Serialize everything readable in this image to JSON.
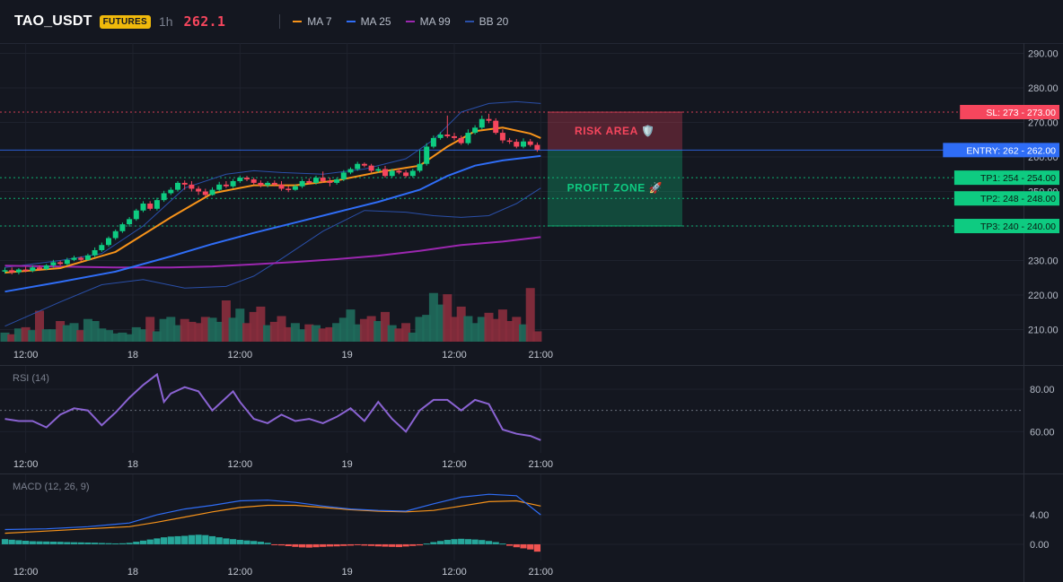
{
  "header": {
    "symbol": "TAO_USDT",
    "badge": "FUTURES",
    "interval": "1h",
    "price": "262.1",
    "legend": [
      {
        "label": "MA 7",
        "color": "#f7931a"
      },
      {
        "label": "MA 25",
        "color": "#2f6df6"
      },
      {
        "label": "MA 99",
        "color": "#9c27b0"
      },
      {
        "label": "BB 20",
        "color": "#2a4fa8"
      }
    ]
  },
  "colors": {
    "up": "#0ecb81",
    "down": "#f6465d",
    "ma7": "#f7931a",
    "ma25": "#2f6df6",
    "ma99": "#9c27b0",
    "bb": "#2a4fa8",
    "rsi": "#8a63d2",
    "macd": "#2f6df6",
    "signal": "#f7931a",
    "hist_up": "#26a69a",
    "hist_down": "#f05350"
  },
  "chart_data": [
    {
      "type": "candlestick",
      "title": "TAO_USDT",
      "y_ticks": [
        "290.00",
        "280.00",
        "270.00",
        "260.00",
        "250.00",
        "240.00",
        "230.00",
        "220.00",
        "210.00"
      ],
      "y_tick_values": [
        290,
        280,
        270,
        260,
        250,
        240,
        230,
        220,
        210
      ],
      "ylim": [
        206.5,
        293
      ],
      "x_ticks": [
        "12:00",
        "18",
        "12:00",
        "19",
        "12:00",
        "21:00"
      ],
      "x_tick_index": [
        3,
        18.5,
        34,
        49.5,
        65,
        77.5
      ],
      "candles": {
        "open": [
          226.8,
          227.2,
          226.6,
          227.4,
          227.0,
          228.0,
          227.5,
          228.6,
          229.5,
          229.0,
          230.2,
          230.8,
          230.2,
          231.5,
          233.0,
          234.5,
          236.5,
          238.5,
          240.5,
          242.0,
          244.5,
          246.5,
          245.0,
          247.5,
          249.5,
          250.5,
          252.5,
          252.0,
          250.8,
          250.0,
          249.0,
          250.5,
          252.0,
          251.5,
          253.0,
          254.0,
          253.5,
          252.5,
          251.8,
          252.5,
          252.0,
          250.8,
          250.5,
          251.5,
          253.0,
          252.5,
          254.0,
          253.0,
          252.5,
          253.5,
          255.5,
          256.5,
          258.0,
          257.5,
          256.0,
          256.5,
          254.5,
          256.0,
          255.5,
          254.5,
          256.0,
          258.0,
          263.0,
          265.5,
          266.5,
          266.0,
          265.5,
          264.0,
          267.0,
          268.5,
          271.0,
          270.5,
          267.0,
          264.8,
          264.4,
          263.0,
          264.5,
          263.5
        ],
        "close": [
          227.2,
          226.6,
          227.4,
          227.0,
          228.0,
          227.5,
          228.6,
          229.5,
          229.0,
          230.2,
          230.8,
          230.2,
          231.5,
          233.0,
          234.5,
          236.5,
          238.5,
          240.5,
          242.0,
          244.5,
          246.5,
          245.0,
          247.5,
          249.5,
          250.5,
          252.5,
          252.0,
          250.8,
          250.0,
          249.0,
          250.5,
          252.0,
          251.5,
          253.0,
          254.0,
          253.5,
          252.5,
          251.8,
          252.5,
          252.0,
          250.8,
          250.5,
          251.5,
          253.0,
          252.5,
          254.0,
          253.0,
          252.5,
          253.5,
          255.5,
          256.5,
          258.0,
          257.5,
          256.0,
          256.5,
          254.5,
          256.0,
          255.5,
          254.5,
          256.0,
          258.0,
          263.0,
          265.5,
          266.5,
          266.0,
          265.5,
          264.0,
          267.0,
          268.5,
          271.0,
          270.5,
          267.0,
          264.8,
          264.4,
          263.0,
          264.5,
          263.5,
          262.1
        ],
        "high": [
          228.0,
          228.0,
          227.8,
          228.2,
          228.6,
          228.6,
          229.0,
          230.2,
          230.0,
          230.8,
          231.4,
          231.2,
          232.0,
          233.8,
          235.2,
          237.0,
          239.0,
          241.0,
          242.6,
          245.0,
          247.2,
          247.2,
          248.2,
          250.2,
          251.2,
          253.0,
          253.2,
          253.0,
          251.5,
          250.8,
          251.2,
          252.8,
          253.0,
          253.6,
          254.6,
          254.5,
          254.0,
          253.2,
          253.0,
          253.2,
          253.0,
          251.6,
          252.0,
          253.6,
          253.8,
          254.6,
          255.8,
          254.0,
          254.0,
          256.2,
          257.0,
          258.6,
          258.4,
          258.0,
          257.2,
          257.4,
          256.6,
          256.8,
          256.2,
          256.6,
          262.0,
          264.0,
          266.2,
          267.2,
          272.0,
          267.0,
          266.2,
          268.0,
          269.2,
          272.0,
          272.5,
          271.2,
          268.0,
          265.5,
          265.2,
          265.4,
          265.2,
          264.2
        ],
        "low": [
          226.2,
          226.0,
          226.0,
          226.6,
          226.6,
          227.0,
          227.2,
          228.0,
          228.6,
          228.6,
          229.8,
          229.8,
          230.0,
          231.0,
          232.5,
          234.0,
          236.0,
          238.0,
          239.8,
          241.5,
          244.0,
          244.5,
          244.5,
          247.0,
          249.0,
          250.0,
          250.5,
          250.0,
          249.0,
          248.5,
          248.8,
          250.0,
          251.0,
          251.0,
          252.5,
          253.0,
          252.0,
          251.2,
          251.2,
          251.5,
          250.2,
          249.8,
          250.2,
          251.0,
          252.0,
          252.0,
          252.5,
          251.5,
          252.0,
          253.0,
          255.0,
          256.0,
          257.0,
          255.5,
          255.5,
          254.0,
          254.0,
          255.0,
          254.0,
          254.0,
          255.5,
          257.5,
          262.5,
          265.0,
          265.5,
          264.8,
          263.5,
          263.5,
          266.5,
          268.0,
          269.8,
          266.5,
          264.0,
          263.8,
          262.5,
          262.5,
          263.0,
          261.5
        ]
      },
      "ma7": {
        "x": [
          0,
          8,
          16,
          24,
          30,
          36,
          42,
          48,
          54,
          60,
          64,
          68,
          72,
          76,
          77.5
        ],
        "y": [
          226.5,
          227.8,
          232.5,
          242.5,
          249.5,
          251.8,
          251.8,
          253.2,
          255.6,
          257.5,
          263.0,
          267.5,
          268.5,
          266.8,
          265.5
        ]
      },
      "ma25": {
        "x": [
          0,
          8,
          16,
          24,
          30,
          36,
          42,
          48,
          54,
          60,
          64,
          68,
          72,
          77.5
        ],
        "y": [
          221.0,
          223.8,
          226.8,
          231.2,
          234.8,
          238.0,
          241.0,
          244.0,
          247.0,
          250.5,
          254.5,
          257.5,
          259.0,
          260.3
        ]
      },
      "ma99": {
        "x": [
          0,
          16,
          24,
          30,
          36,
          42,
          48,
          54,
          60,
          66,
          72,
          77.5
        ],
        "y": [
          228.5,
          228.0,
          228.0,
          228.3,
          228.9,
          229.6,
          230.4,
          231.4,
          232.8,
          234.5,
          235.5,
          236.8
        ]
      },
      "bb_upper": {
        "x": [
          0,
          8,
          14,
          20,
          26,
          32,
          36,
          40,
          46,
          52,
          58,
          62,
          66,
          70,
          74,
          77.5
        ],
        "y": [
          228.0,
          230.0,
          232.0,
          240.0,
          251.0,
          255.0,
          256.0,
          255.5,
          255.0,
          256.5,
          259.5,
          265.0,
          273.0,
          275.5,
          276.0,
          275.5
        ]
      },
      "bb_lower": {
        "x": [
          0,
          8,
          14,
          20,
          26,
          32,
          36,
          40,
          46,
          52,
          58,
          62,
          66,
          70,
          74,
          77.5
        ],
        "y": [
          211.0,
          218.0,
          223.0,
          224.5,
          222.0,
          222.5,
          225.5,
          230.5,
          238.5,
          244.5,
          244.0,
          243.0,
          242.5,
          243.0,
          246.5,
          251.0
        ]
      },
      "volume": [
        0.22,
        0.18,
        0.32,
        0.35,
        0.28,
        0.75,
        0.3,
        0.3,
        0.5,
        0.4,
        0.45,
        0.28,
        0.55,
        0.5,
        0.32,
        0.28,
        0.2,
        0.22,
        0.18,
        0.35,
        0.3,
        0.6,
        0.25,
        0.55,
        0.6,
        0.4,
        0.55,
        0.48,
        0.45,
        0.6,
        0.58,
        0.48,
        1.0,
        0.58,
        0.8,
        0.45,
        0.72,
        0.85,
        0.4,
        0.48,
        0.62,
        0.35,
        0.45,
        0.3,
        0.42,
        0.4,
        0.32,
        0.35,
        0.45,
        0.58,
        0.78,
        0.42,
        0.55,
        0.62,
        0.5,
        0.72,
        0.4,
        0.32,
        0.45,
        0.22,
        0.6,
        0.65,
        1.18,
        0.9,
        1.15,
        0.6,
        0.85,
        0.62,
        0.45,
        0.6,
        0.7,
        0.55,
        0.78,
        0.5,
        0.6,
        0.42,
        1.3,
        0.25
      ],
      "lines": [
        {
          "label": "SL: 273 - 273.00",
          "value": 273,
          "color": "#f6465d",
          "style": "dotted"
        },
        {
          "label": "ENTRY: 262 - 262.00",
          "value": 262,
          "color": "#2f6df6",
          "style": "solid"
        },
        {
          "label": "TP1: 254 - 254.00",
          "value": 254,
          "color": "#0ecb81",
          "style": "dotted"
        },
        {
          "label": "TP2: 248 - 248.00",
          "value": 248,
          "color": "#0ecb81",
          "style": "dotted"
        },
        {
          "label": "TP3: 240 - 240.00",
          "value": 240,
          "color": "#0ecb81",
          "style": "dotted"
        }
      ],
      "zones": [
        {
          "label": "RISK AREA 🛡️",
          "from": 262,
          "to": 273,
          "color": "#f6465d"
        },
        {
          "label": "PROFIT ZONE 🚀",
          "from": 240,
          "to": 262,
          "color": "#0ecb81"
        }
      ]
    },
    {
      "type": "line",
      "title": "RSI (14)",
      "y_ticks": [
        "80.00",
        "60.00"
      ],
      "y_tick_values": [
        80,
        60
      ],
      "ylim": [
        50,
        91
      ],
      "reference": 70,
      "x_ticks": [
        "12:00",
        "18",
        "12:00",
        "19",
        "12:00",
        "21:00"
      ],
      "x_tick_index": [
        3,
        18.5,
        34,
        49.5,
        65,
        77.5
      ],
      "series": [
        {
          "x": [
            0,
            2,
            4,
            6,
            8,
            10,
            12,
            14,
            16,
            18,
            20,
            22,
            23,
            24,
            26,
            28,
            30,
            32,
            33,
            34,
            36,
            38,
            40,
            42,
            44,
            46,
            48,
            50,
            52,
            54,
            56,
            58,
            60,
            62,
            64,
            66,
            68,
            70,
            72,
            74,
            76,
            77.5
          ],
          "y": [
            66,
            65,
            65,
            62,
            68,
            71,
            70,
            63,
            69,
            76,
            82,
            87,
            74,
            78,
            81,
            79,
            70,
            76,
            79,
            74,
            66,
            64,
            68,
            65,
            66,
            64,
            67,
            71,
            65,
            74,
            66,
            60,
            70,
            75,
            75,
            70,
            75,
            73,
            61,
            59,
            58,
            56
          ]
        }
      ]
    },
    {
      "type": "line",
      "title": "MACD (12, 26, 9)",
      "y_ticks": [
        "4.00",
        "0.00"
      ],
      "y_tick_values": [
        4,
        0
      ],
      "ylim": [
        -2.2,
        9.5
      ],
      "x_ticks": [
        "12:00",
        "18",
        "12:00",
        "19",
        "12:00",
        "21:00"
      ],
      "x_tick_index": [
        3,
        18.5,
        34,
        49.5,
        65,
        77.5
      ],
      "series": [
        {
          "x": [
            0,
            6,
            12,
            18,
            22,
            26,
            30,
            34,
            38,
            42,
            46,
            50,
            54,
            58,
            62,
            66,
            70,
            74,
            77.5
          ],
          "y": [
            2.0,
            2.1,
            2.4,
            2.9,
            4.0,
            4.8,
            5.3,
            5.9,
            6.0,
            5.7,
            5.2,
            4.8,
            4.6,
            4.5,
            5.5,
            6.4,
            6.8,
            6.6,
            4.0
          ]
        },
        {
          "x": [
            0,
            6,
            12,
            18,
            22,
            26,
            30,
            34,
            38,
            42,
            46,
            50,
            54,
            58,
            62,
            66,
            70,
            74,
            77.5
          ],
          "y": [
            1.5,
            1.8,
            2.1,
            2.4,
            3.0,
            3.7,
            4.4,
            5.0,
            5.3,
            5.3,
            5.0,
            4.7,
            4.5,
            4.4,
            4.6,
            5.2,
            5.8,
            5.9,
            5.2
          ]
        }
      ],
      "histogram": [
        0.7,
        0.62,
        0.55,
        0.48,
        0.42,
        0.4,
        0.38,
        0.36,
        0.34,
        0.3,
        0.28,
        0.26,
        0.24,
        0.22,
        0.18,
        0.15,
        0.12,
        0.14,
        0.2,
        0.35,
        0.5,
        0.65,
        0.8,
        0.95,
        1.05,
        1.1,
        1.15,
        1.25,
        1.3,
        1.25,
        1.1,
        0.95,
        0.8,
        0.7,
        0.6,
        0.52,
        0.45,
        0.35,
        0.2,
        -0.05,
        -0.15,
        -0.25,
        -0.35,
        -0.42,
        -0.45,
        -0.4,
        -0.35,
        -0.3,
        -0.28,
        -0.22,
        -0.18,
        -0.12,
        -0.18,
        -0.22,
        -0.28,
        -0.32,
        -0.35,
        -0.38,
        -0.3,
        -0.22,
        -0.15,
        0.1,
        0.3,
        0.45,
        0.6,
        0.7,
        0.75,
        0.7,
        0.65,
        0.58,
        0.45,
        0.3,
        0.1,
        -0.2,
        -0.4,
        -0.55,
        -0.7,
        -1.0
      ]
    }
  ]
}
